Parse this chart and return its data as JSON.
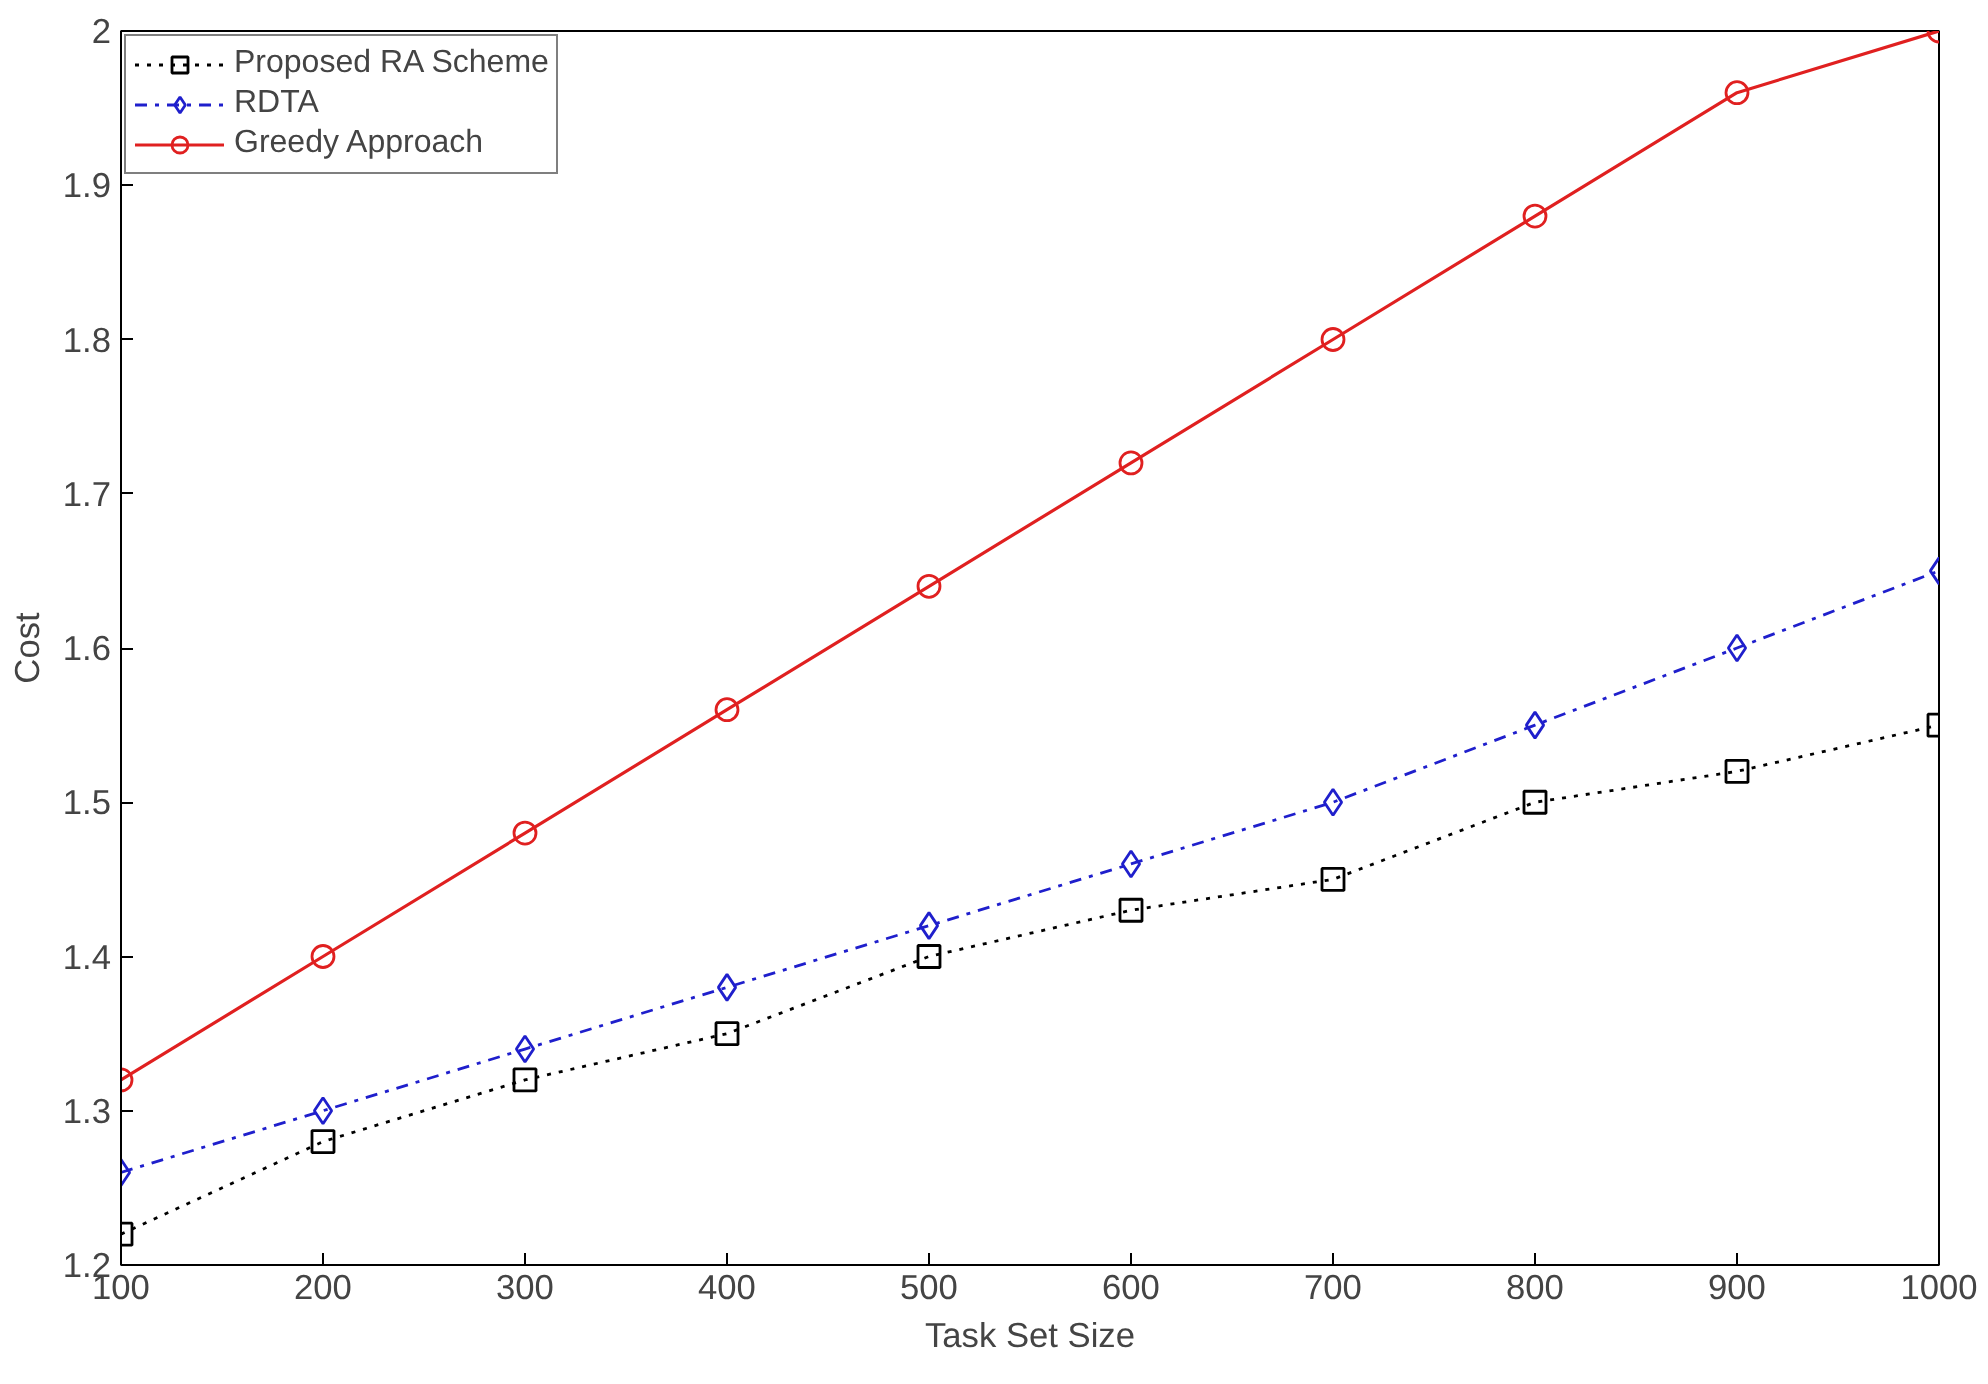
{
  "chart_data": {
    "type": "line",
    "xlabel": "Task Set Size",
    "ylabel": "Cost",
    "x": [
      100,
      200,
      300,
      400,
      500,
      600,
      700,
      800,
      900,
      1000
    ],
    "series": [
      {
        "name": "Proposed RA Scheme",
        "color": "#000000",
        "marker": "square",
        "line_style": "dotted",
        "values": [
          1.22,
          1.28,
          1.32,
          1.35,
          1.4,
          1.43,
          1.45,
          1.5,
          1.52,
          1.55
        ]
      },
      {
        "name": "RDTA",
        "color": "#1f1fcc",
        "marker": "diamond",
        "line_style": "dashdot",
        "values": [
          1.26,
          1.3,
          1.34,
          1.38,
          1.42,
          1.46,
          1.5,
          1.55,
          1.6,
          1.65
        ]
      },
      {
        "name": "Greedy Approach",
        "color": "#e02020",
        "marker": "circle",
        "line_style": "solid",
        "values": [
          1.32,
          1.4,
          1.48,
          1.56,
          1.64,
          1.72,
          1.8,
          1.88,
          1.96,
          2.0
        ]
      }
    ],
    "xlim": [
      100,
      1000
    ],
    "ylim": [
      1.2,
      2
    ],
    "xticks": [
      100,
      200,
      300,
      400,
      500,
      600,
      700,
      800,
      900,
      1000
    ],
    "yticks": [
      1.2,
      1.3,
      1.4,
      1.5,
      1.6,
      1.7,
      1.8,
      1.9,
      2
    ],
    "grid": false,
    "legend": "top left"
  }
}
